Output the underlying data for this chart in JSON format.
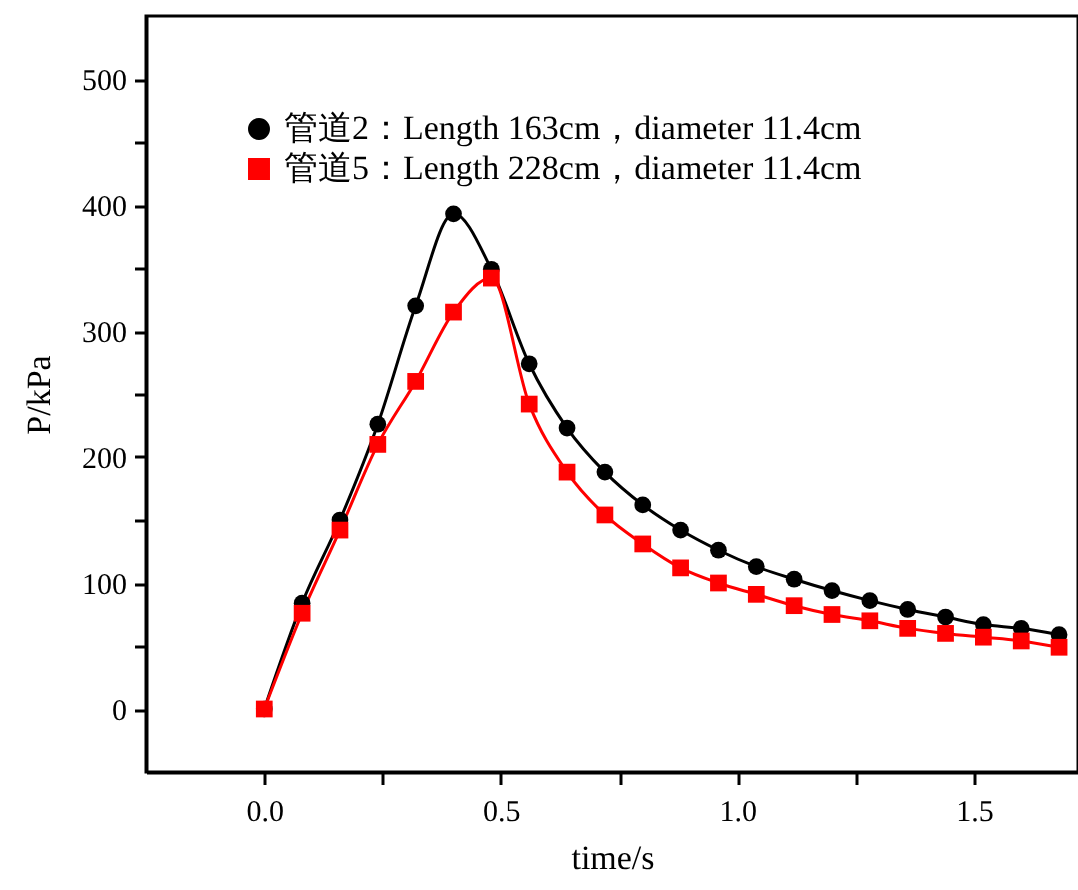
{
  "chart_data": {
    "type": "line",
    "xlabel": "time/s",
    "ylabel": "P/kPa",
    "x": [
      0,
      0.08,
      0.16,
      0.24,
      0.32,
      0.4,
      0.48,
      0.56,
      0.64,
      0.72,
      0.8,
      0.88,
      0.96,
      1.04,
      1.12,
      1.2,
      1.28,
      1.36,
      1.44,
      1.52,
      1.6,
      1.68
    ],
    "series": [
      {
        "name": "管道2：Length 163cm，diameter 11.4cm",
        "color": "#000000",
        "marker": "circle",
        "values": [
          0,
          84,
          150,
          226,
          320,
          393,
          349,
          274,
          223,
          188,
          162,
          142,
          126,
          113,
          103,
          94,
          86,
          79,
          73,
          67,
          64,
          59
        ]
      },
      {
        "name": "管道5：Length 228cm，diameter 11.4cm",
        "color": "#ff0000",
        "marker": "square",
        "values": [
          0,
          76,
          142,
          210,
          260,
          315,
          342,
          242,
          188,
          154,
          131,
          112,
          100,
          91,
          82,
          75,
          70,
          64,
          60,
          57,
          54,
          49
        ]
      }
    ],
    "xlim": [
      -0.25,
      1.72
    ],
    "xticks": [
      {
        "value": 0,
        "label": "0.0"
      },
      {
        "value": 0.25,
        "label": null
      },
      0.5,
      {
        "value": 0.75,
        "label": null
      },
      {
        "value": 1,
        "label": "1.0"
      },
      {
        "value": 1.25,
        "label": null
      },
      1.5
    ],
    "ylim": [
      -50,
      550
    ],
    "yticks": [
      0,
      {
        "value": 50,
        "label": null
      },
      100,
      {
        "value": 150,
        "label": null
      },
      200,
      {
        "value": 250,
        "label": null
      },
      300,
      {
        "value": 350,
        "label": null
      },
      400,
      {
        "value": 450,
        "label": null
      },
      500
    ],
    "grid": false,
    "legend": "top left",
    "line_style": "solid"
  }
}
